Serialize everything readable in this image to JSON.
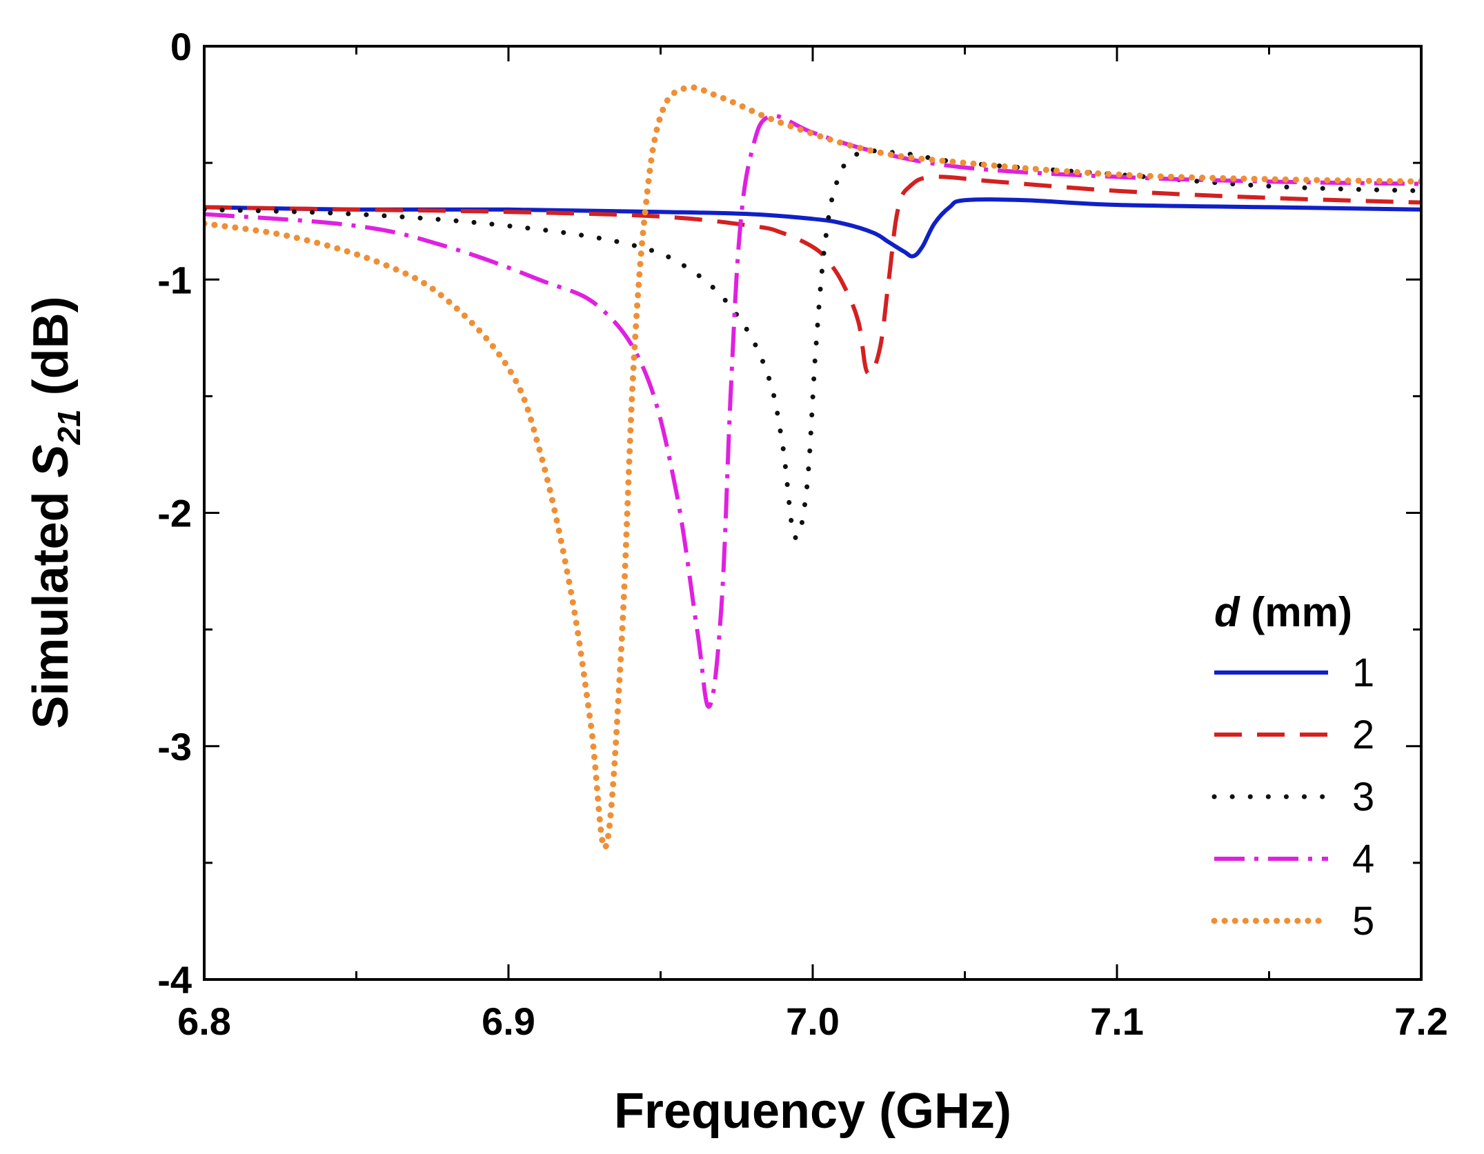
{
  "chart_data": {
    "type": "line",
    "xlabel": "Frequency (GHz)",
    "ylabel": {
      "prefix": "Simulated ",
      "symbol": "S",
      "subscript": "21",
      "suffix": " (dB)"
    },
    "xlim": [
      6.8,
      7.2
    ],
    "ylim": [
      -4,
      0
    ],
    "x_ticks": [
      6.8,
      6.9,
      7.0,
      7.1,
      7.2
    ],
    "x_tick_labels": [
      "6.8",
      "6.9",
      "7.0",
      "7.1",
      "7.2"
    ],
    "y_ticks": [
      0,
      -1,
      -2,
      -3,
      -4
    ],
    "y_tick_labels": [
      "0",
      "-1",
      "-2",
      "-3",
      "-4"
    ],
    "grid": false,
    "legend": {
      "position": "right",
      "title_italic": "d",
      "title_rest": " (mm)"
    },
    "series": [
      {
        "name": "1",
        "color": "#1020c8",
        "style": "solid",
        "points": [
          [
            6.8,
            -0.69
          ],
          [
            6.85,
            -0.7
          ],
          [
            6.9,
            -0.7
          ],
          [
            6.95,
            -0.71
          ],
          [
            6.98,
            -0.72
          ],
          [
            7.0,
            -0.74
          ],
          [
            7.01,
            -0.76
          ],
          [
            7.02,
            -0.8
          ],
          [
            7.025,
            -0.84
          ],
          [
            7.03,
            -0.88
          ],
          [
            7.033,
            -0.9
          ],
          [
            7.036,
            -0.86
          ],
          [
            7.04,
            -0.76
          ],
          [
            7.045,
            -0.69
          ],
          [
            7.05,
            -0.66
          ],
          [
            7.07,
            -0.66
          ],
          [
            7.1,
            -0.68
          ],
          [
            7.15,
            -0.69
          ],
          [
            7.2,
            -0.7
          ]
        ]
      },
      {
        "name": "2",
        "color": "#d42020",
        "style": "dashed",
        "points": [
          [
            6.8,
            -0.69
          ],
          [
            6.85,
            -0.7
          ],
          [
            6.9,
            -0.71
          ],
          [
            6.95,
            -0.73
          ],
          [
            6.98,
            -0.77
          ],
          [
            6.99,
            -0.8
          ],
          [
            7.0,
            -0.86
          ],
          [
            7.005,
            -0.92
          ],
          [
            7.01,
            -1.02
          ],
          [
            7.015,
            -1.18
          ],
          [
            7.018,
            -1.4
          ],
          [
            7.022,
            -1.3
          ],
          [
            7.025,
            -1.0
          ],
          [
            7.028,
            -0.7
          ],
          [
            7.032,
            -0.6
          ],
          [
            7.04,
            -0.56
          ],
          [
            7.06,
            -0.58
          ],
          [
            7.1,
            -0.62
          ],
          [
            7.15,
            -0.65
          ],
          [
            7.2,
            -0.67
          ]
        ]
      },
      {
        "name": "3",
        "color": "#111111",
        "style": "dotted",
        "points": [
          [
            6.8,
            -0.7
          ],
          [
            6.85,
            -0.72
          ],
          [
            6.9,
            -0.77
          ],
          [
            6.94,
            -0.85
          ],
          [
            6.96,
            -0.96
          ],
          [
            6.975,
            -1.15
          ],
          [
            6.985,
            -1.4
          ],
          [
            6.99,
            -1.7
          ],
          [
            6.994,
            -2.1
          ],
          [
            6.998,
            -1.9
          ],
          [
            7.001,
            -1.3
          ],
          [
            7.004,
            -0.85
          ],
          [
            7.008,
            -0.58
          ],
          [
            7.015,
            -0.46
          ],
          [
            7.03,
            -0.46
          ],
          [
            7.05,
            -0.5
          ],
          [
            7.1,
            -0.55
          ],
          [
            7.15,
            -0.6
          ],
          [
            7.2,
            -0.62
          ]
        ]
      },
      {
        "name": "4",
        "color": "#e020e0",
        "style": "dashdot",
        "points": [
          [
            6.8,
            -0.72
          ],
          [
            6.85,
            -0.77
          ],
          [
            6.88,
            -0.86
          ],
          [
            6.91,
            -1.0
          ],
          [
            6.93,
            -1.12
          ],
          [
            6.945,
            -1.4
          ],
          [
            6.955,
            -1.9
          ],
          [
            6.962,
            -2.5
          ],
          [
            6.966,
            -2.83
          ],
          [
            6.97,
            -2.4
          ],
          [
            6.973,
            -1.5
          ],
          [
            6.976,
            -0.8
          ],
          [
            6.98,
            -0.45
          ],
          [
            6.986,
            -0.3
          ],
          [
            7.0,
            -0.37
          ],
          [
            7.02,
            -0.45
          ],
          [
            7.05,
            -0.52
          ],
          [
            7.1,
            -0.56
          ],
          [
            7.15,
            -0.58
          ],
          [
            7.2,
            -0.59
          ]
        ]
      },
      {
        "name": "5",
        "color": "#ef8f35",
        "style": "densedot",
        "points": [
          [
            6.8,
            -0.76
          ],
          [
            6.83,
            -0.82
          ],
          [
            6.86,
            -0.94
          ],
          [
            6.88,
            -1.09
          ],
          [
            6.9,
            -1.38
          ],
          [
            6.91,
            -1.72
          ],
          [
            6.92,
            -2.3
          ],
          [
            6.927,
            -2.9
          ],
          [
            6.932,
            -3.43
          ],
          [
            6.937,
            -2.6
          ],
          [
            6.941,
            -1.4
          ],
          [
            6.945,
            -0.7
          ],
          [
            6.95,
            -0.3
          ],
          [
            6.958,
            -0.18
          ],
          [
            6.97,
            -0.22
          ],
          [
            6.99,
            -0.33
          ],
          [
            7.02,
            -0.45
          ],
          [
            7.05,
            -0.5
          ],
          [
            7.1,
            -0.55
          ],
          [
            7.15,
            -0.57
          ],
          [
            7.2,
            -0.58
          ]
        ]
      }
    ]
  }
}
